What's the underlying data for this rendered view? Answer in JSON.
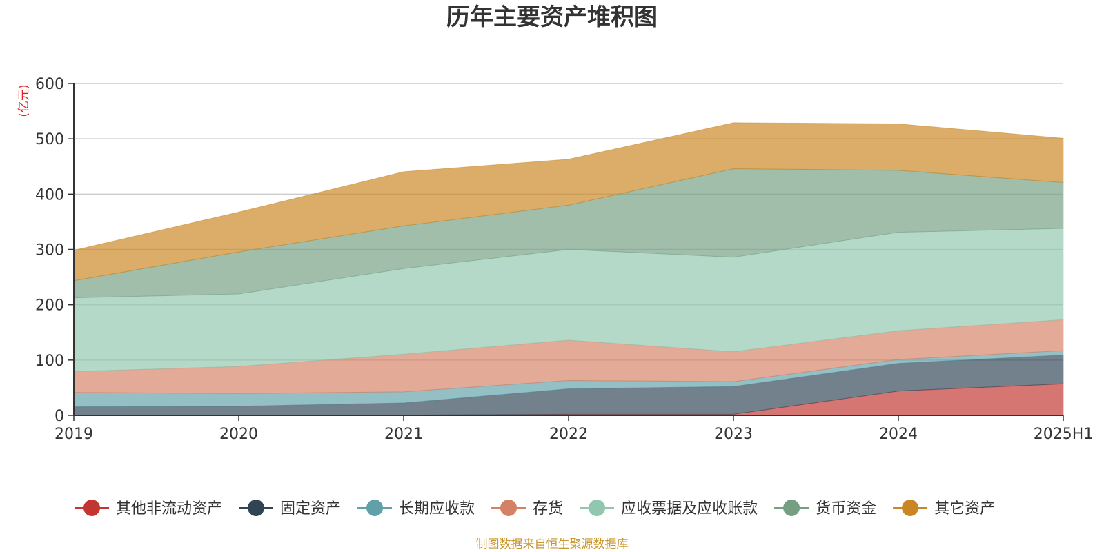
{
  "title": "历年主要资产堆积图",
  "footer": "制图数据来自恒生聚源数据库",
  "chart_data": {
    "type": "area",
    "stacked": true,
    "unit": "(亿元)",
    "categories": [
      "2019",
      "2020",
      "2021",
      "2022",
      "2023",
      "2024",
      "2025H1"
    ],
    "ylim": [
      0,
      600
    ],
    "yticks": [
      0,
      100,
      200,
      300,
      400,
      500,
      600
    ],
    "grid": true,
    "legend_position": "bottom",
    "series": [
      {
        "name": "其他非流动资产",
        "color": "#c23531",
        "values": [
          0.5,
          0.5,
          0.5,
          2,
          2,
          44,
          57
        ]
      },
      {
        "name": "固定资产",
        "color": "#2f4554",
        "values": [
          15,
          16,
          22,
          46,
          50,
          50,
          52
        ]
      },
      {
        "name": "长期应收款",
        "color": "#61a0a8",
        "values": [
          26,
          23,
          20,
          15,
          9,
          7,
          8
        ]
      },
      {
        "name": "存货",
        "color": "#d48265",
        "values": [
          38,
          49,
          68,
          73,
          54,
          52,
          56
        ]
      },
      {
        "name": "应收票据及应收账款",
        "color": "#91c7ae",
        "values": [
          133,
          131,
          155,
          164,
          171,
          178,
          165
        ]
      },
      {
        "name": "货币资金",
        "color": "#749f83",
        "values": [
          31,
          76,
          77,
          80,
          160,
          112,
          83
        ]
      },
      {
        "name": "其它资产",
        "color": "#ca8622",
        "values": [
          55,
          72,
          98,
          83,
          83,
          84,
          80
        ]
      }
    ]
  }
}
